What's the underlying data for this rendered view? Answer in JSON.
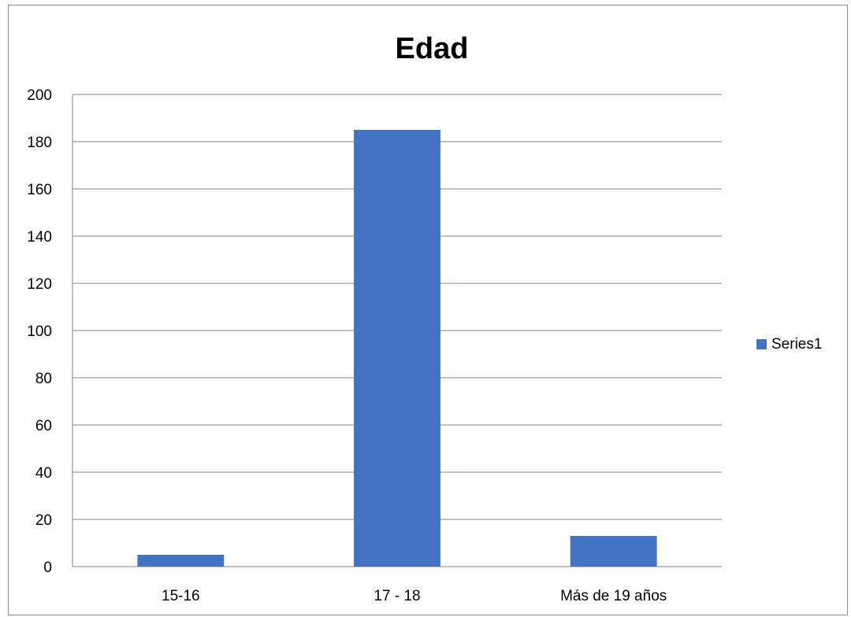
{
  "chart_data": {
    "type": "bar",
    "title": "Edad",
    "xlabel": "",
    "ylabel": "",
    "categories": [
      "15-16",
      "17 - 18",
      "Más de 19 años"
    ],
    "series": [
      {
        "name": "Series1",
        "values": [
          5,
          185,
          13
        ],
        "color": "#4472c4"
      }
    ],
    "ylim": [
      0,
      200
    ],
    "yticks": [
      0,
      20,
      40,
      60,
      80,
      100,
      120,
      140,
      160,
      180,
      200
    ],
    "grid": true,
    "legend_position": "right"
  }
}
